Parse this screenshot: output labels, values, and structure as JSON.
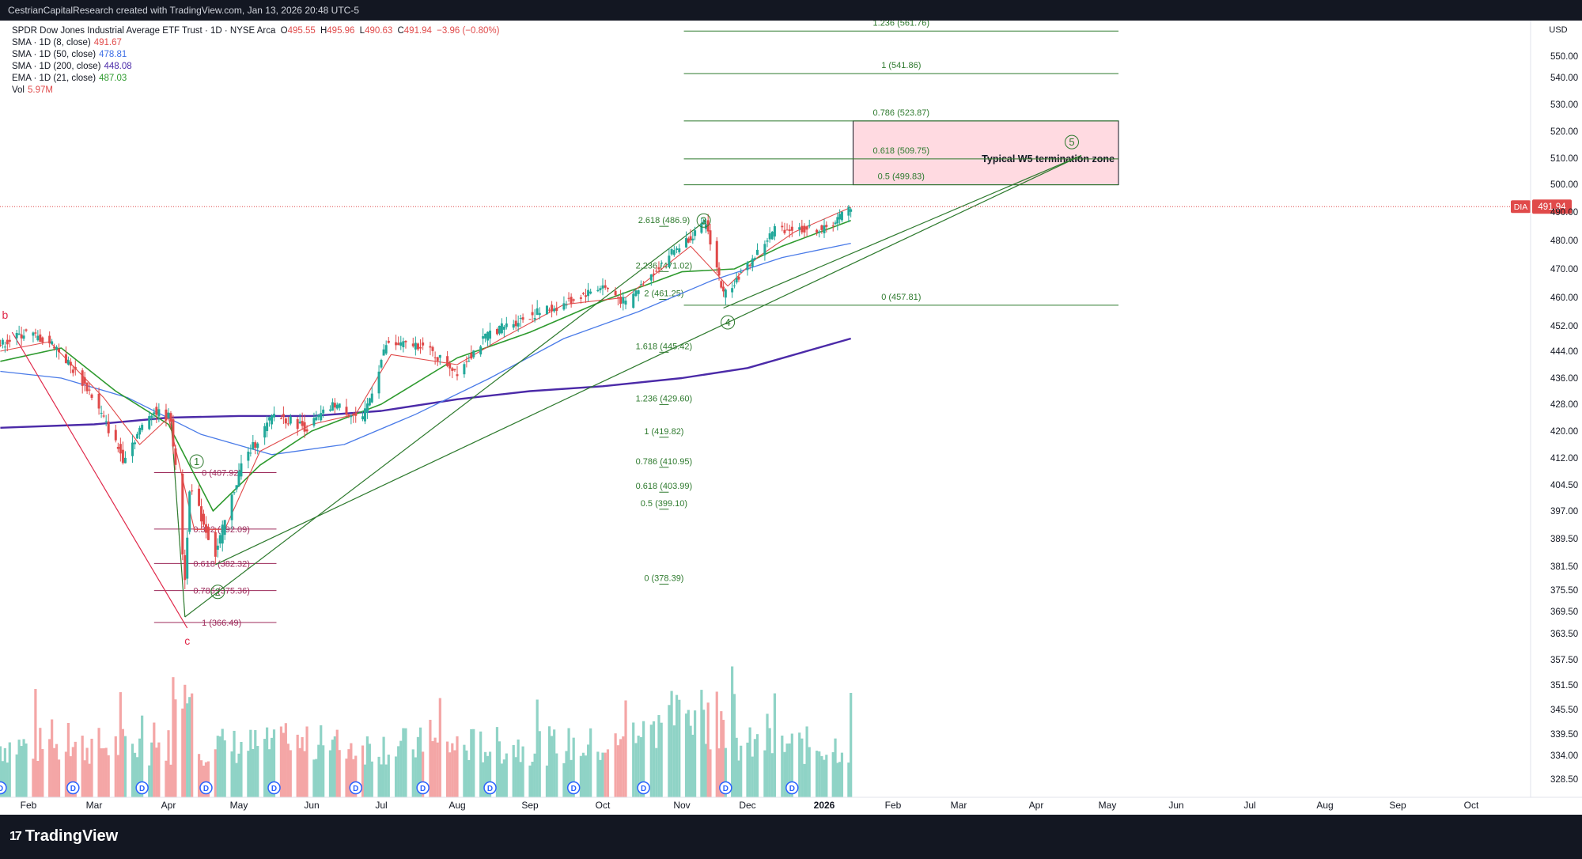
{
  "header": {
    "attribution": "CestrianCapitalResearch created with TradingView.com, Jan 13, 2026 20:48 UTC-5"
  },
  "footer": {
    "brand": "TradingView",
    "brand_mark": "17"
  },
  "legend": {
    "symbol": "SPDR Dow Jones Industrial Average ETF Trust · 1D · NYSE Arca",
    "ohlc": {
      "o_label": "O",
      "o": "495.55",
      "h_label": "H",
      "h": "495.96",
      "l_label": "L",
      "l": "490.63",
      "c_label": "C",
      "c": "491.94",
      "change": "−3.96 (−0.80%)"
    },
    "indicators": [
      {
        "label": "SMA · 1D (8, close)",
        "value": "491.67",
        "color": "#e04a4a"
      },
      {
        "label": "SMA · 1D (50, close)",
        "value": "478.81",
        "color": "#3e6fe6"
      },
      {
        "label": "SMA · 1D (200, close)",
        "value": "448.08",
        "color": "#4b2aa8"
      },
      {
        "label": "EMA · 1D (21, close)",
        "value": "487.03",
        "color": "#2e9a2e"
      },
      {
        "label": "Vol",
        "value": "5.97M",
        "color": "#e04a4a"
      }
    ]
  },
  "chart_data": {
    "type": "candlestick",
    "ticker": "DIA",
    "currency": "USD",
    "last_price": 491.94,
    "last_price_label": "491.94",
    "price_axis": {
      "ticks": [
        550,
        540,
        530,
        520,
        510,
        500,
        490,
        480,
        470,
        460,
        452,
        444,
        436,
        428,
        420,
        412,
        404.5,
        397,
        389.5,
        381.5,
        375.5,
        369.5,
        363.5,
        357.5,
        351.5,
        345.5,
        339.5,
        334,
        328.5
      ],
      "tick_labels": [
        "550.00",
        "540.00",
        "530.00",
        "520.00",
        "510.00",
        "500.00",
        "490.00",
        "480.00",
        "470.00",
        "460.00",
        "452.00",
        "444.00",
        "436.00",
        "428.00",
        "420.00",
        "412.00",
        "404.50",
        "397.00",
        "389.50",
        "381.50",
        "375.50",
        "369.50",
        "363.50",
        "357.50",
        "351.50",
        "345.50",
        "339.50",
        "334.00",
        "328.50"
      ]
    },
    "time_axis": {
      "labels": [
        {
          "date": "2025-02-01",
          "text": "Feb",
          "bold": false
        },
        {
          "date": "2025-03-01",
          "text": "Mar",
          "bold": false
        },
        {
          "date": "2025-04-01",
          "text": "Apr",
          "bold": false
        },
        {
          "date": "2025-05-01",
          "text": "May",
          "bold": false
        },
        {
          "date": "2025-06-01",
          "text": "Jun",
          "bold": false
        },
        {
          "date": "2025-07-01",
          "text": "Jul",
          "bold": false
        },
        {
          "date": "2025-08-01",
          "text": "Aug",
          "bold": false
        },
        {
          "date": "2025-09-01",
          "text": "Sep",
          "bold": false
        },
        {
          "date": "2025-10-01",
          "text": "Oct",
          "bold": false
        },
        {
          "date": "2025-11-01",
          "text": "Nov",
          "bold": false
        },
        {
          "date": "2025-12-01",
          "text": "Dec",
          "bold": false
        },
        {
          "date": "2026-01-01",
          "text": "2026",
          "bold": true
        },
        {
          "date": "2026-02-01",
          "text": "Feb",
          "bold": false
        },
        {
          "date": "2026-03-01",
          "text": "Mar",
          "bold": false
        },
        {
          "date": "2026-04-01",
          "text": "Apr",
          "bold": false
        },
        {
          "date": "2026-05-01",
          "text": "May",
          "bold": false
        },
        {
          "date": "2026-06-01",
          "text": "Jun",
          "bold": false
        },
        {
          "date": "2026-07-01",
          "text": "Jul",
          "bold": false
        },
        {
          "date": "2026-08-01",
          "text": "Aug",
          "bold": false
        },
        {
          "date": "2026-09-01",
          "text": "Sep",
          "bold": false
        },
        {
          "date": "2026-10-01",
          "text": "Oct",
          "bold": false
        }
      ]
    },
    "price_anchors": [
      {
        "date": "2025-01-20",
        "price": 446
      },
      {
        "date": "2025-01-31",
        "price": 450
      },
      {
        "date": "2025-02-12",
        "price": 446
      },
      {
        "date": "2025-02-27",
        "price": 432
      },
      {
        "date": "2025-03-13",
        "price": 412
      },
      {
        "date": "2025-03-25",
        "price": 426
      },
      {
        "date": "2025-04-02",
        "price": 424
      },
      {
        "date": "2025-04-08",
        "price": 378
      },
      {
        "date": "2025-04-10",
        "price": 404
      },
      {
        "date": "2025-04-21",
        "price": 385
      },
      {
        "date": "2025-05-02",
        "price": 410
      },
      {
        "date": "2025-05-16",
        "price": 425
      },
      {
        "date": "2025-05-30",
        "price": 421
      },
      {
        "date": "2025-06-11",
        "price": 428
      },
      {
        "date": "2025-06-23",
        "price": 423
      },
      {
        "date": "2025-07-03",
        "price": 446
      },
      {
        "date": "2025-07-17",
        "price": 446
      },
      {
        "date": "2025-08-01",
        "price": 438
      },
      {
        "date": "2025-08-15",
        "price": 450
      },
      {
        "date": "2025-09-01",
        "price": 455
      },
      {
        "date": "2025-09-15",
        "price": 458
      },
      {
        "date": "2025-10-01",
        "price": 464
      },
      {
        "date": "2025-10-10",
        "price": 458
      },
      {
        "date": "2025-10-28",
        "price": 476
      },
      {
        "date": "2025-11-12",
        "price": 486
      },
      {
        "date": "2025-11-20",
        "price": 461
      },
      {
        "date": "2025-12-01",
        "price": 471
      },
      {
        "date": "2025-12-12",
        "price": 484
      },
      {
        "date": "2025-12-24",
        "price": 484
      },
      {
        "date": "2026-01-02",
        "price": 484
      },
      {
        "date": "2026-01-13",
        "price": 492
      }
    ],
    "moving_averages": [
      {
        "name": "SMA 200",
        "color": "#4b2aa8",
        "width": 2.4,
        "points": [
          [
            "2025-01-20",
            421
          ],
          [
            "2025-03-01",
            422
          ],
          [
            "2025-04-01",
            424
          ],
          [
            "2025-05-01",
            424.5
          ],
          [
            "2025-06-01",
            424.5
          ],
          [
            "2025-07-01",
            426
          ],
          [
            "2025-08-01",
            429.5
          ],
          [
            "2025-09-01",
            432
          ],
          [
            "2025-10-01",
            433.5
          ],
          [
            "2025-11-01",
            436
          ],
          [
            "2025-12-01",
            439
          ],
          [
            "2026-01-13",
            448
          ]
        ]
      },
      {
        "name": "SMA 50",
        "color": "#4a7be8",
        "width": 1.3,
        "points": [
          [
            "2025-01-20",
            438
          ],
          [
            "2025-02-15",
            436
          ],
          [
            "2025-03-15",
            430
          ],
          [
            "2025-04-15",
            419
          ],
          [
            "2025-05-15",
            413
          ],
          [
            "2025-06-15",
            416
          ],
          [
            "2025-07-15",
            425
          ],
          [
            "2025-08-15",
            436
          ],
          [
            "2025-09-15",
            448
          ],
          [
            "2025-10-15",
            456
          ],
          [
            "2025-11-15",
            466
          ],
          [
            "2025-12-15",
            474
          ],
          [
            "2026-01-13",
            479
          ]
        ]
      },
      {
        "name": "EMA 21",
        "color": "#2e9a2e",
        "width": 1.6,
        "points": [
          [
            "2025-01-20",
            441
          ],
          [
            "2025-02-15",
            445
          ],
          [
            "2025-03-10",
            432
          ],
          [
            "2025-04-01",
            422
          ],
          [
            "2025-04-20",
            397
          ],
          [
            "2025-05-10",
            410
          ],
          [
            "2025-06-01",
            420
          ],
          [
            "2025-07-01",
            428
          ],
          [
            "2025-08-01",
            442
          ],
          [
            "2025-09-01",
            450
          ],
          [
            "2025-10-01",
            459
          ],
          [
            "2025-11-01",
            469
          ],
          [
            "2025-11-25",
            470
          ],
          [
            "2025-12-15",
            478
          ],
          [
            "2026-01-13",
            487
          ]
        ]
      },
      {
        "name": "SMA 8",
        "color": "#e04a4a",
        "width": 1.1,
        "points": [
          [
            "2025-01-20",
            444
          ],
          [
            "2025-02-10",
            447
          ],
          [
            "2025-03-05",
            430
          ],
          [
            "2025-03-20",
            416
          ],
          [
            "2025-04-01",
            424
          ],
          [
            "2025-04-12",
            392
          ],
          [
            "2025-04-25",
            392
          ],
          [
            "2025-05-10",
            414
          ],
          [
            "2025-06-01",
            422
          ],
          [
            "2025-06-20",
            425
          ],
          [
            "2025-07-05",
            443
          ],
          [
            "2025-08-01",
            440
          ],
          [
            "2025-08-20",
            448
          ],
          [
            "2025-09-15",
            458
          ],
          [
            "2025-10-10",
            460
          ],
          [
            "2025-11-05",
            478
          ],
          [
            "2025-11-22",
            464
          ],
          [
            "2025-12-05",
            474
          ],
          [
            "2025-12-20",
            483
          ],
          [
            "2026-01-13",
            491.7
          ]
        ]
      }
    ],
    "fib_levels_upper": [
      {
        "label": "1.236 (561.76)",
        "price": 561.76
      },
      {
        "label": "1 (541.86)",
        "price": 541.86
      },
      {
        "label": "0.786 (523.87)",
        "price": 523.87
      },
      {
        "label": "0.618 (509.75)",
        "price": 509.75
      },
      {
        "label": "0.5 (499.83)",
        "price": 499.83
      },
      {
        "label": "0 (457.81)",
        "price": 457.81
      }
    ],
    "fib_levels_middle": [
      {
        "label": "2.618 (486.9)",
        "price": 486.9
      },
      {
        "label": "2.236 (471.02)",
        "price": 471.02
      },
      {
        "label": "2 (461.25)",
        "price": 461.25
      },
      {
        "label": "1.618 (445.42)",
        "price": 445.42
      },
      {
        "label": "1.236 (429.60)",
        "price": 429.6
      },
      {
        "label": "1 (419.82)",
        "price": 419.82
      },
      {
        "label": "0.786 (410.95)",
        "price": 410.95
      },
      {
        "label": "0.618 (403.99)",
        "price": 403.99
      },
      {
        "label": "0.5 (399.10)",
        "price": 399.1
      },
      {
        "label": "0 (378.39)",
        "price": 378.39
      }
    ],
    "fib_levels_lower": [
      {
        "label": "0 (407.92)",
        "price": 407.92
      },
      {
        "label": "0.382 (392.09)",
        "price": 392.09
      },
      {
        "label": "0.618 (382.32)",
        "price": 382.32
      },
      {
        "label": "0.786 (375.36)",
        "price": 375.36
      },
      {
        "label": "1 (366.49)",
        "price": 366.49
      }
    ],
    "zone": {
      "label": "Typical W5 termination zone",
      "top": 523.87,
      "bottom": 499.83,
      "start": "2026-01-14",
      "end": "2026-05-06"
    },
    "wave_labels": [
      {
        "text": "b",
        "date": "2025-01-22",
        "price": 454,
        "style": "letter"
      },
      {
        "text": "c",
        "date": "2025-04-09",
        "price": 361,
        "style": "letter"
      },
      {
        "text": "1",
        "date": "2025-04-13",
        "price": 411,
        "style": "circle"
      },
      {
        "text": "2",
        "date": "2025-04-22",
        "price": 375,
        "style": "circle"
      },
      {
        "text": "3",
        "date": "2025-11-11",
        "price": 487,
        "style": "circle"
      },
      {
        "text": "4",
        "date": "2025-11-22",
        "price": 453,
        "style": "circle"
      },
      {
        "text": "5",
        "date": "2026-04-16",
        "price": 516,
        "style": "circle"
      }
    ],
    "trend_lines": [
      {
        "color": "#e0294a",
        "points": [
          [
            "2025-01-25",
            450
          ],
          [
            "2025-04-09",
            365
          ]
        ]
      },
      {
        "color": "#2e7a2e",
        "points": [
          [
            "2025-04-21",
            382
          ],
          [
            "2026-04-20",
            511
          ]
        ]
      },
      {
        "color": "#2e7a2e",
        "points": [
          [
            "2025-11-20",
            457
          ],
          [
            "2026-04-20",
            511
          ]
        ]
      },
      {
        "color": "#2e7a2e",
        "points": [
          [
            "2025-04-02",
            424
          ],
          [
            "2025-04-08",
            368
          ]
        ]
      },
      {
        "color": "#2e7a2e",
        "points": [
          [
            "2025-04-08",
            368
          ],
          [
            "2025-11-12",
            487
          ]
        ]
      }
    ],
    "dividend_marker": "D",
    "dividend_dates": [
      "2025-01-20",
      "2025-02-20",
      "2025-03-21",
      "2025-04-17",
      "2025-05-16",
      "2025-06-20",
      "2025-07-18",
      "2025-08-15",
      "2025-09-19",
      "2025-10-17",
      "2025-11-21",
      "2025-12-19"
    ]
  }
}
